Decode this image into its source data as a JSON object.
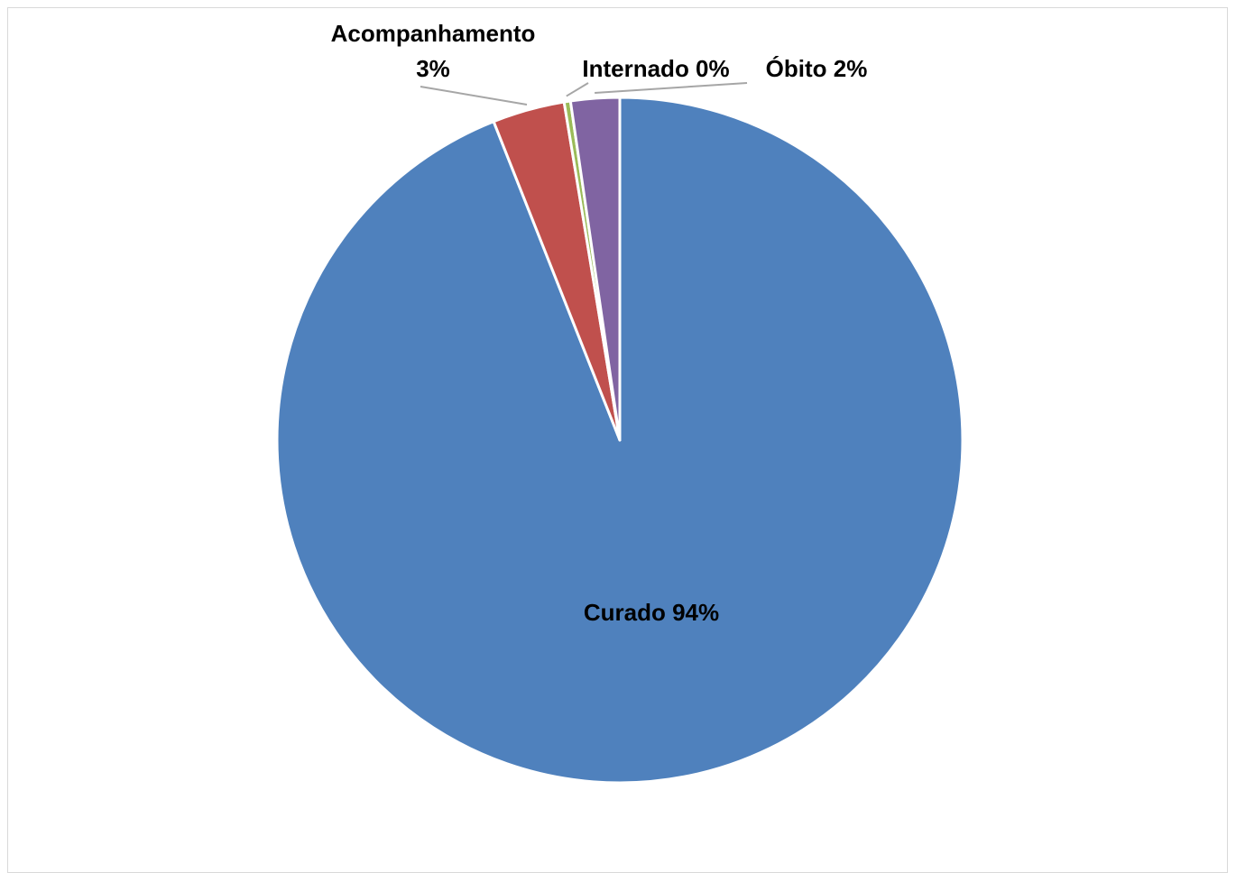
{
  "chart_data": {
    "type": "pie",
    "title": "",
    "slices": [
      {
        "name": "Curado",
        "value": 94,
        "label": "Curado 94%",
        "color": "#4f81bd"
      },
      {
        "name": "Acompanhamento",
        "value": 3.4,
        "label_line1": "Acompanhamento",
        "label_line2": "3%",
        "color": "#c0504d"
      },
      {
        "name": "Internado",
        "value": 0.3,
        "label": "Internado 0%",
        "color": "#9bbb59"
      },
      {
        "name": "Óbito",
        "value": 2.3,
        "label": "Óbito 2%",
        "color": "#8064a2"
      }
    ],
    "start_angle": "12 o'clock",
    "direction": "clockwise",
    "legend": "none"
  }
}
